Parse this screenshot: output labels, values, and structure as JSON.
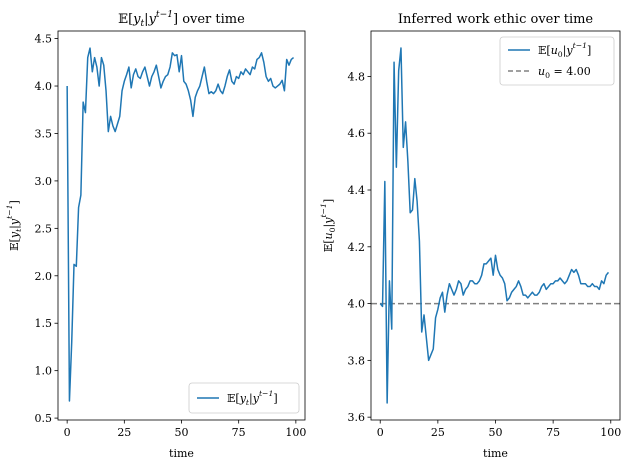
{
  "chart_data": [
    {
      "type": "line",
      "title": "E[y_t|y^{t-1}] over time",
      "xlabel": "time",
      "ylabel": "E[y_t|y^{t-1}]",
      "xlim": [
        -4,
        104
      ],
      "ylim": [
        0.48,
        4.58
      ],
      "xticks": [
        0,
        25,
        50,
        75,
        100
      ],
      "xtick_labels": [
        "0",
        "25",
        "50",
        "75",
        "100"
      ],
      "yticks": [
        0.5,
        1.0,
        1.5,
        2.0,
        2.5,
        3.0,
        3.5,
        4.0,
        4.5
      ],
      "ytick_labels": [
        "0.5",
        "1.0",
        "1.5",
        "2.0",
        "2.5",
        "3.0",
        "3.5",
        "4.0",
        "4.5"
      ],
      "legend_position": "lower-right",
      "color": "#1f77b4",
      "series": [
        {
          "name": "E[y_t|y^{t-1}]",
          "x": [
            0,
            1,
            2,
            3,
            4,
            5,
            6,
            7,
            8,
            9,
            10,
            11,
            12,
            13,
            14,
            15,
            16,
            17,
            18,
            19,
            20,
            21,
            22,
            23,
            24,
            25,
            26,
            27,
            28,
            29,
            30,
            31,
            32,
            33,
            34,
            35,
            36,
            37,
            38,
            39,
            40,
            41,
            42,
            43,
            44,
            45,
            46,
            47,
            48,
            49,
            50,
            51,
            52,
            53,
            54,
            55,
            56,
            57,
            58,
            59,
            60,
            61,
            62,
            63,
            64,
            65,
            66,
            67,
            68,
            69,
            70,
            71,
            72,
            73,
            74,
            75,
            76,
            77,
            78,
            79,
            80,
            81,
            82,
            83,
            84,
            85,
            86,
            87,
            88,
            89,
            90,
            91,
            92,
            93,
            94,
            95,
            96,
            97,
            98,
            99
          ],
          "y": [
            4.0,
            0.68,
            1.3,
            2.12,
            2.1,
            2.72,
            2.85,
            3.83,
            3.72,
            4.3,
            4.4,
            4.15,
            4.3,
            4.2,
            4.0,
            4.3,
            4.22,
            3.95,
            3.52,
            3.68,
            3.58,
            3.52,
            3.6,
            3.68,
            3.95,
            4.05,
            4.12,
            4.2,
            3.98,
            4.12,
            4.18,
            4.1,
            4.08,
            4.15,
            4.2,
            4.1,
            4.0,
            4.1,
            4.15,
            4.22,
            4.1,
            3.98,
            4.05,
            4.1,
            4.12,
            4.2,
            4.35,
            4.32,
            4.33,
            4.15,
            4.32,
            4.05,
            4.02,
            3.95,
            3.85,
            3.68,
            3.88,
            3.95,
            4.0,
            4.1,
            4.2,
            4.05,
            3.92,
            3.94,
            3.92,
            3.95,
            4.02,
            3.95,
            3.92,
            4.0,
            4.1,
            4.17,
            4.05,
            4.02,
            4.1,
            4.08,
            4.15,
            4.12,
            4.18,
            4.15,
            4.12,
            4.2,
            4.18,
            4.28,
            4.3,
            4.35,
            4.25,
            4.1,
            4.05,
            4.08,
            4.0,
            3.98,
            4.0,
            4.02,
            4.06,
            3.95,
            4.28,
            4.22,
            4.28,
            4.3
          ]
        }
      ]
    },
    {
      "type": "line",
      "title": "Inferred work ethic over time",
      "xlabel": "time",
      "ylabel": "E[u_0|y^{t-1}]",
      "xlim": [
        -4,
        104
      ],
      "ylim": [
        3.59,
        4.96
      ],
      "xticks": [
        0,
        25,
        50,
        75,
        100
      ],
      "xtick_labels": [
        "0",
        "25",
        "50",
        "75",
        "100"
      ],
      "yticks": [
        3.6,
        3.8,
        4.0,
        4.2,
        4.4,
        4.6,
        4.8
      ],
      "ytick_labels": [
        "3.6",
        "3.8",
        "4.0",
        "4.2",
        "4.4",
        "4.6",
        "4.8"
      ],
      "legend_position": "upper-right",
      "color": "#1f77b4",
      "reference_line": {
        "y": 4.0,
        "label": "u_0 = 4.00",
        "color": "#808080",
        "style": "dashed"
      },
      "series": [
        {
          "name": "E[u_0|y^{t-1}]",
          "x": [
            0,
            1,
            2,
            3,
            4,
            5,
            6,
            7,
            8,
            9,
            10,
            11,
            12,
            13,
            14,
            15,
            16,
            17,
            18,
            19,
            20,
            21,
            22,
            23,
            24,
            25,
            26,
            27,
            28,
            29,
            30,
            31,
            32,
            33,
            34,
            35,
            36,
            37,
            38,
            39,
            40,
            41,
            42,
            43,
            44,
            45,
            46,
            47,
            48,
            49,
            50,
            51,
            52,
            53,
            54,
            55,
            56,
            57,
            58,
            59,
            60,
            61,
            62,
            63,
            64,
            65,
            66,
            67,
            68,
            69,
            70,
            71,
            72,
            73,
            74,
            75,
            76,
            77,
            78,
            79,
            80,
            81,
            82,
            83,
            84,
            85,
            86,
            87,
            88,
            89,
            90,
            91,
            92,
            93,
            94,
            95,
            96,
            97,
            98,
            99
          ],
          "y": [
            4.0,
            3.99,
            4.43,
            3.65,
            4.08,
            3.91,
            4.85,
            4.48,
            4.82,
            4.9,
            4.55,
            4.64,
            4.5,
            4.32,
            4.33,
            4.44,
            4.36,
            4.22,
            3.9,
            3.96,
            3.88,
            3.8,
            3.82,
            3.84,
            3.95,
            3.98,
            4.02,
            4.04,
            3.97,
            4.03,
            4.07,
            4.05,
            4.03,
            4.05,
            4.08,
            4.07,
            4.03,
            4.05,
            4.06,
            4.08,
            4.08,
            4.07,
            4.07,
            4.08,
            4.1,
            4.14,
            4.14,
            4.15,
            4.16,
            4.1,
            4.17,
            4.12,
            4.1,
            4.09,
            4.07,
            4.01,
            4.02,
            4.04,
            4.05,
            4.06,
            4.08,
            4.06,
            4.03,
            4.03,
            4.02,
            4.03,
            4.04,
            4.03,
            4.03,
            4.04,
            4.06,
            4.07,
            4.05,
            4.06,
            4.07,
            4.07,
            4.08,
            4.08,
            4.09,
            4.08,
            4.07,
            4.08,
            4.1,
            4.12,
            4.11,
            4.12,
            4.1,
            4.07,
            4.07,
            4.07,
            4.06,
            4.06,
            4.07,
            4.06,
            4.06,
            4.05,
            4.08,
            4.07,
            4.1,
            4.11
          ]
        }
      ]
    }
  ]
}
